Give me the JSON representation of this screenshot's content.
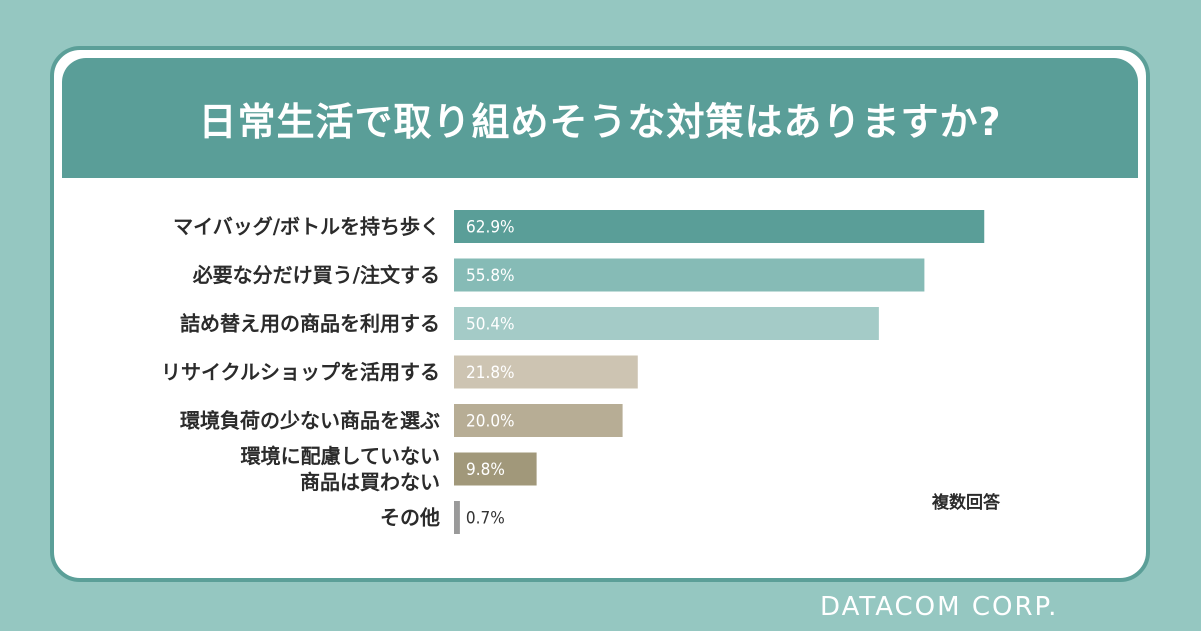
{
  "title": "日常生活で取り組めそうな対策はありますか?",
  "note": "複数回答",
  "brand": "DATACOM CORP.",
  "chart_data": {
    "type": "bar",
    "orientation": "horizontal",
    "categories": [
      [
        "マイバッグ/ボトルを持ち歩く"
      ],
      [
        "必要な分だけ買う/注文する"
      ],
      [
        "詰め替え用の商品を利用する"
      ],
      [
        "リサイクルショップを活用する"
      ],
      [
        "環境負荷の少ない商品を選ぶ"
      ],
      [
        "環境に配慮していない",
        "商品は買わない"
      ],
      [
        "その他"
      ]
    ],
    "values": [
      62.9,
      55.8,
      50.4,
      21.8,
      20.0,
      9.8,
      0.7
    ],
    "value_labels": [
      "62.9%",
      "55.8%",
      "50.4%",
      "21.8%",
      "20.0%",
      "9.8%",
      "0.7%"
    ],
    "colors": [
      "#5a9e98",
      "#86bbb6",
      "#a4cbc7",
      "#cdc4b2",
      "#b7ad95",
      "#a1987a",
      "#9a9a9a"
    ],
    "xlim": [
      0,
      70
    ]
  }
}
